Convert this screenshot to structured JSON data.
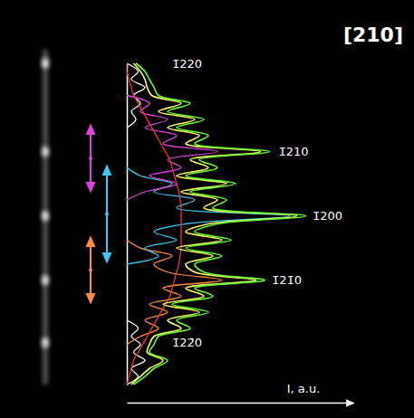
{
  "chart_data": {
    "type": "line",
    "title": "[210]",
    "y_label": "I, a.u.",
    "orientation": "horizontal",
    "tick_labels": false,
    "grid": false,
    "x": [
      0,
      2.5,
      5,
      7.5,
      10,
      12.5,
      15,
      17.5,
      20,
      22.5,
      25,
      27.5,
      30,
      32.5,
      35,
      37.5,
      40,
      42.5,
      45,
      47.5,
      50,
      52.5,
      55,
      57.5,
      60,
      62.5,
      65,
      67.5,
      70,
      72.5,
      75,
      77.5,
      80,
      82.5,
      85,
      87.5,
      90,
      92.5,
      95,
      97.5,
      100
    ],
    "xlim": [
      0,
      100
    ],
    "xticks": [],
    "ylim": [
      0,
      100
    ],
    "yticks": [],
    "series": [
      {
        "color": "#ffffff",
        "values": [
          0,
          5,
          2,
          8,
          3,
          6,
          2,
          5,
          0,
          null,
          null,
          null,
          null,
          null,
          null,
          null,
          null,
          null,
          null,
          null,
          null,
          null,
          null,
          null,
          null,
          null,
          null,
          null,
          null,
          null,
          null,
          null,
          0,
          4,
          2,
          6,
          3,
          8,
          2,
          5,
          0
        ]
      },
      {
        "color": "#ff8c40",
        "values": [
          null,
          null,
          null,
          null,
          null,
          0,
          6,
          14,
          8,
          18,
          10,
          24,
          16,
          42,
          18,
          12,
          20,
          6,
          0,
          null,
          null,
          null,
          null,
          null,
          null,
          null,
          null,
          null,
          null,
          null,
          null,
          null,
          null,
          null,
          null,
          null,
          null,
          null,
          null,
          null,
          null
        ]
      },
      {
        "color": "#3cc8f0",
        "values": [
          null,
          null,
          null,
          null,
          null,
          null,
          null,
          null,
          null,
          null,
          null,
          null,
          null,
          null,
          null,
          0,
          14,
          8,
          22,
          12,
          26,
          72,
          22,
          30,
          12,
          20,
          6,
          0,
          null,
          null,
          null,
          null,
          null,
          null,
          null,
          null,
          null,
          null,
          null,
          null,
          null
        ]
      },
      {
        "color": "#e040e0",
        "values": [
          null,
          null,
          null,
          null,
          null,
          null,
          null,
          null,
          null,
          null,
          null,
          null,
          null,
          null,
          null,
          null,
          null,
          null,
          null,
          null,
          null,
          null,
          null,
          0,
          8,
          22,
          10,
          24,
          18,
          40,
          16,
          22,
          8,
          18,
          6,
          10,
          0,
          null,
          null,
          null,
          null
        ]
      },
      {
        "color": "#ff3030",
        "values": [
          0,
          1,
          2,
          3,
          5,
          7,
          9,
          11,
          13,
          15,
          17,
          19,
          20,
          21,
          22,
          23,
          23.5,
          24,
          24,
          24,
          24,
          24,
          24,
          23.5,
          23,
          22,
          21,
          20,
          19,
          17,
          15,
          13,
          11,
          9,
          7,
          5,
          3,
          2,
          1,
          0,
          0
        ]
      },
      {
        "color": "#ffff66",
        "values": [
          2,
          6,
          10,
          16,
          9,
          10,
          12,
          24,
          18,
          32,
          16,
          34,
          26,
          57,
          30,
          26,
          38,
          22,
          42,
          26,
          36,
          75,
          34,
          40,
          24,
          44,
          22,
          36,
          28,
          59,
          26,
          32,
          18,
          30,
          14,
          24,
          11,
          9,
          8,
          6,
          3
        ]
      },
      {
        "color": "#66ff33",
        "values": [
          3,
          8,
          12,
          18,
          10,
          12,
          14,
          28,
          22,
          36,
          20,
          38,
          30,
          61,
          34,
          30,
          42,
          26,
          46,
          30,
          40,
          79,
          38,
          44,
          28,
          48,
          26,
          40,
          32,
          63,
          30,
          36,
          22,
          34,
          18,
          28,
          14,
          12,
          10,
          8,
          4
        ]
      }
    ],
    "annotations": [
      {
        "text": "1̄220",
        "x": 100,
        "y": 20
      },
      {
        "text": "1̄210",
        "x": 72.5,
        "y": 67
      },
      {
        "text": "1̄200",
        "x": 52.5,
        "y": 82
      },
      {
        "text": "1̄21̄0",
        "x": 32.5,
        "y": 64
      },
      {
        "text": "1̄22̄0",
        "x": 13,
        "y": 20
      }
    ]
  }
}
